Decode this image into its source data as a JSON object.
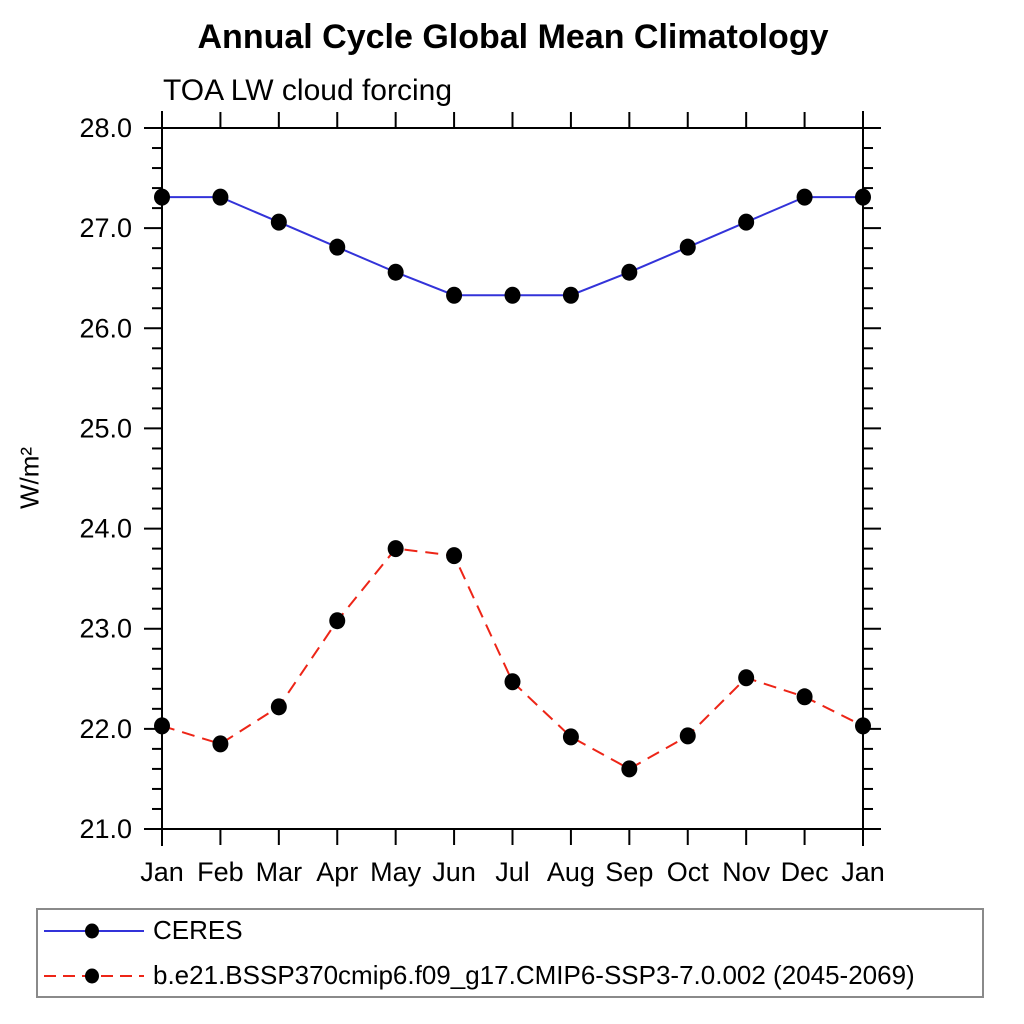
{
  "title": "Annual Cycle Global Mean Climatology",
  "subtitle": "TOA LW cloud forcing",
  "ylabel": "W/m²",
  "chart_data": {
    "type": "line",
    "title": "Annual Cycle Global Mean Climatology",
    "subtitle": "TOA LW cloud forcing",
    "xlabel": "",
    "ylabel": "W/m^2",
    "categories": [
      "Jan",
      "Feb",
      "Mar",
      "Apr",
      "May",
      "Jun",
      "Jul",
      "Aug",
      "Sep",
      "Oct",
      "Nov",
      "Dec",
      "Jan"
    ],
    "series": [
      {
        "name": "CERES",
        "line_style": "solid",
        "line_color": "#3333d9",
        "marker": "filled-circle",
        "marker_color": "#000000",
        "values": [
          27.31,
          27.31,
          27.06,
          26.81,
          26.56,
          26.33,
          26.33,
          26.33,
          26.56,
          26.81,
          27.06,
          27.31,
          27.31
        ]
      },
      {
        "name": "b.e21.BSSP370cmip6.f09_g17.CMIP6-SSP3-7.0.002 (2045-2069)",
        "line_style": "dashed",
        "line_color": "#ed2517",
        "marker": "filled-circle",
        "marker_color": "#000000",
        "values": [
          22.03,
          21.85,
          22.22,
          23.08,
          23.8,
          23.73,
          22.47,
          21.92,
          21.6,
          21.93,
          22.51,
          22.32,
          22.03
        ]
      }
    ],
    "ylim": [
      21.0,
      28.0
    ],
    "y_major_step": 1.0,
    "y_minor_step": 0.2,
    "y_tick_labels": [
      "21.0",
      "22.0",
      "23.0",
      "24.0",
      "25.0",
      "26.0",
      "27.0",
      "28.0"
    ],
    "grid": false,
    "legend_position": "bottom-left",
    "axis_color": "#000000"
  }
}
